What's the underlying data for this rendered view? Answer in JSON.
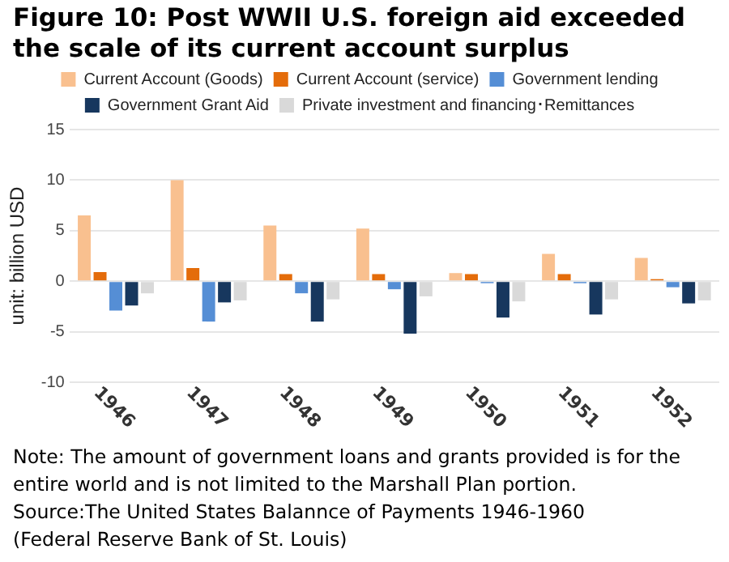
{
  "chart_data": {
    "type": "bar",
    "title": "Figure 10: Post WWII U.S. foreign aid exceeded the scale of its current account surplus",
    "ylabel": "unit: billion USD",
    "categories": [
      "1946",
      "1947",
      "1948",
      "1949",
      "1950",
      "1951",
      "1952"
    ],
    "series": [
      {
        "name": "Current Account (Goods)",
        "color": "#f9c08f",
        "values": [
          6.5,
          10.0,
          5.5,
          5.2,
          0.8,
          2.7,
          2.3
        ]
      },
      {
        "name": "Current Account (service)",
        "color": "#e46c0a",
        "values": [
          0.9,
          1.3,
          0.7,
          0.7,
          0.7,
          0.7,
          0.2
        ]
      },
      {
        "name": "Government lending",
        "color": "#558ed5",
        "values": [
          -2.9,
          -4.0,
          -1.2,
          -0.8,
          -0.2,
          -0.2,
          -0.6
        ]
      },
      {
        "name": "Government Grant Aid",
        "color": "#17375e",
        "values": [
          -2.4,
          -2.1,
          -4.0,
          -5.2,
          -3.6,
          -3.3,
          -2.2
        ]
      },
      {
        "name": "Private investment and financing･Remittances",
        "color": "#d9d9d9",
        "values": [
          -1.2,
          -1.9,
          -1.8,
          -1.5,
          -2.0,
          -1.8,
          -1.9
        ]
      }
    ],
    "ylim": [
      -10,
      15
    ],
    "yticks": [
      -10,
      -5,
      0,
      5,
      10,
      15
    ],
    "grid": "y",
    "legend": "top",
    "annotations": [
      "Note: The amount of government loans and grants provided is for the entire world and is not limited to the Marshall Plan portion.",
      "Source:The United States Balannce of Payments 1946-1960",
      "(Federal Reserve Bank of St. Louis)"
    ]
  }
}
